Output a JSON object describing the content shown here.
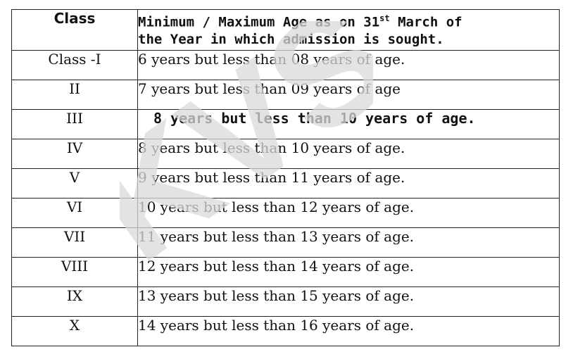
{
  "table": {
    "header": {
      "class": "Class",
      "age_line1": "Minimum / Maximum Age as on 31",
      "age_sup": "st",
      "age_line1_tail": " March of",
      "age_line2": "the Year in which admission is sought."
    },
    "rows": [
      {
        "class": "Class -I",
        "age": "6 years but less than 08 years of age."
      },
      {
        "class": "II",
        "age": "7 years but less than 09 years of age"
      },
      {
        "class": "III",
        "age": "8 years but less than 10 years of age."
      },
      {
        "class": "IV",
        "age": "8 years but less than 10 years of age."
      },
      {
        "class": "V",
        "age": "9 years but less than 11 years of age."
      },
      {
        "class": "VI",
        "age": "10 years but less than 12 years of age."
      },
      {
        "class": "VII",
        "age": "11 years but less than 13 years of age."
      },
      {
        "class": "VIII",
        "age": "12 years but less than 14 years of age."
      },
      {
        "class": "IX",
        "age": "13 years but less than 15 years of age."
      },
      {
        "class": "X",
        "age": "14 years but less than 16 years of age."
      }
    ]
  },
  "watermark": {
    "text": "KVS",
    "color": "#d9d9d9"
  }
}
